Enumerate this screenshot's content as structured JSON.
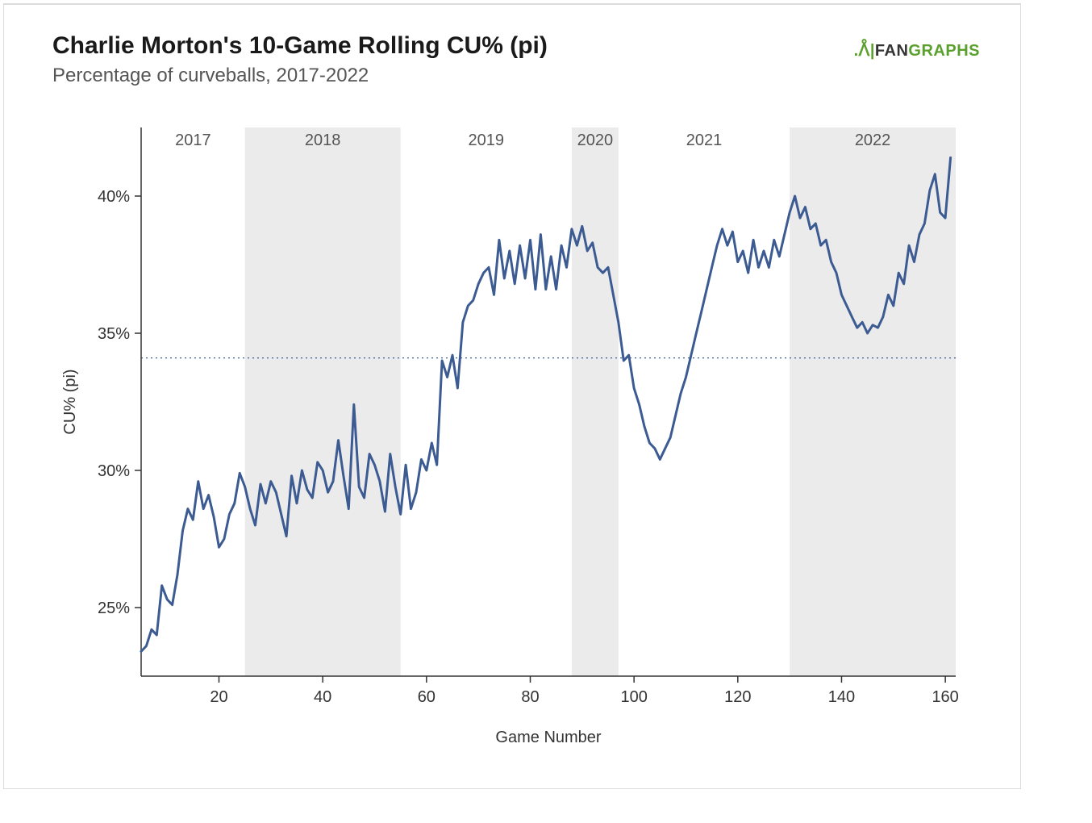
{
  "header": {
    "title": "Charlie Morton's 10-Game Rolling CU% (pi)",
    "subtitle": "Percentage of curveballs, 2017-2022"
  },
  "brand": {
    "prefix_icon": ".ᐰ|",
    "text_fan": "FAN",
    "text_graphs": "GRAPHS",
    "brand_color": "#5aa02c",
    "text_color": "#333333"
  },
  "chart": {
    "type": "line",
    "xlabel": "Game Number",
    "ylabel": "CU% (pi)",
    "label_fontsize": 20,
    "tick_fontsize": 20,
    "background_color": "#ffffff",
    "band_color": "#ebebeb",
    "axis_color": "#333333",
    "line_color": "#3b5b92",
    "line_width": 3,
    "reference_line": {
      "value": 34.1,
      "color": "#3b5b92",
      "dash": "2,4",
      "width": 1.2
    },
    "xlim": [
      5,
      162
    ],
    "ylim": [
      22.5,
      42.5
    ],
    "xticks": [
      20,
      40,
      60,
      80,
      100,
      120,
      140,
      160
    ],
    "yticks": [
      25,
      30,
      35,
      40
    ],
    "ytick_suffix": "%",
    "year_bands": [
      {
        "label": "2017",
        "start": 5,
        "end": 25,
        "shaded": false
      },
      {
        "label": "2018",
        "start": 25,
        "end": 55,
        "shaded": true
      },
      {
        "label": "2019",
        "start": 55,
        "end": 88,
        "shaded": false
      },
      {
        "label": "2020",
        "start": 88,
        "end": 97,
        "shaded": true
      },
      {
        "label": "2021",
        "start": 97,
        "end": 130,
        "shaded": false
      },
      {
        "label": "2022",
        "start": 130,
        "end": 162,
        "shaded": true
      }
    ],
    "series": {
      "x": [
        5,
        6,
        7,
        8,
        9,
        10,
        11,
        12,
        13,
        14,
        15,
        16,
        17,
        18,
        19,
        20,
        21,
        22,
        23,
        24,
        25,
        26,
        27,
        28,
        29,
        30,
        31,
        32,
        33,
        34,
        35,
        36,
        37,
        38,
        39,
        40,
        41,
        42,
        43,
        44,
        45,
        46,
        47,
        48,
        49,
        50,
        51,
        52,
        53,
        54,
        55,
        56,
        57,
        58,
        59,
        60,
        61,
        62,
        63,
        64,
        65,
        66,
        67,
        68,
        69,
        70,
        71,
        72,
        73,
        74,
        75,
        76,
        77,
        78,
        79,
        80,
        81,
        82,
        83,
        84,
        85,
        86,
        87,
        88,
        89,
        90,
        91,
        92,
        93,
        94,
        95,
        96,
        97,
        98,
        99,
        100,
        101,
        102,
        103,
        104,
        105,
        106,
        107,
        108,
        109,
        110,
        111,
        112,
        113,
        114,
        115,
        116,
        117,
        118,
        119,
        120,
        121,
        122,
        123,
        124,
        125,
        126,
        127,
        128,
        129,
        130,
        131,
        132,
        133,
        134,
        135,
        136,
        137,
        138,
        139,
        140,
        141,
        142,
        143,
        144,
        145,
        146,
        147,
        148,
        149,
        150,
        151,
        152,
        153,
        154,
        155,
        156,
        157,
        158,
        159,
        160,
        161
      ],
      "y": [
        23.4,
        23.6,
        24.2,
        24.0,
        25.8,
        25.3,
        25.1,
        26.2,
        27.8,
        28.6,
        28.2,
        29.6,
        28.6,
        29.1,
        28.3,
        27.2,
        27.5,
        28.4,
        28.8,
        29.9,
        29.4,
        28.6,
        28.0,
        29.5,
        28.8,
        29.6,
        29.2,
        28.4,
        27.6,
        29.8,
        28.8,
        30.0,
        29.3,
        29.0,
        30.3,
        30.0,
        29.2,
        29.6,
        31.1,
        29.8,
        28.6,
        32.4,
        29.4,
        29.0,
        30.6,
        30.2,
        29.6,
        28.5,
        30.6,
        29.4,
        28.4,
        30.2,
        28.6,
        29.2,
        30.4,
        30.0,
        31.0,
        30.2,
        34.0,
        33.4,
        34.2,
        33.0,
        35.4,
        36.0,
        36.2,
        36.8,
        37.2,
        37.4,
        36.4,
        38.4,
        37.0,
        38.0,
        36.8,
        38.2,
        37.0,
        38.4,
        36.6,
        38.6,
        36.6,
        37.8,
        36.6,
        38.2,
        37.4,
        38.8,
        38.2,
        38.9,
        38.0,
        38.3,
        37.4,
        37.2,
        37.4,
        36.4,
        35.4,
        34.0,
        34.2,
        33.0,
        32.4,
        31.6,
        31.0,
        30.8,
        30.4,
        30.8,
        31.2,
        32.0,
        32.8,
        33.4,
        34.2,
        35.0,
        35.8,
        36.6,
        37.4,
        38.2,
        38.8,
        38.2,
        38.7,
        37.6,
        38.0,
        37.2,
        38.4,
        37.4,
        38.0,
        37.4,
        38.4,
        37.8,
        38.6,
        39.4,
        40.0,
        39.2,
        39.6,
        38.8,
        39.0,
        38.2,
        38.4,
        37.6,
        37.2,
        36.4,
        36.0,
        35.6,
        35.2,
        35.4,
        35.0,
        35.3,
        35.2,
        35.6,
        36.4,
        36.0,
        37.2,
        36.8,
        38.2,
        37.6,
        38.6,
        39.0,
        40.2,
        40.8,
        39.4,
        39.2,
        41.4
      ]
    }
  }
}
